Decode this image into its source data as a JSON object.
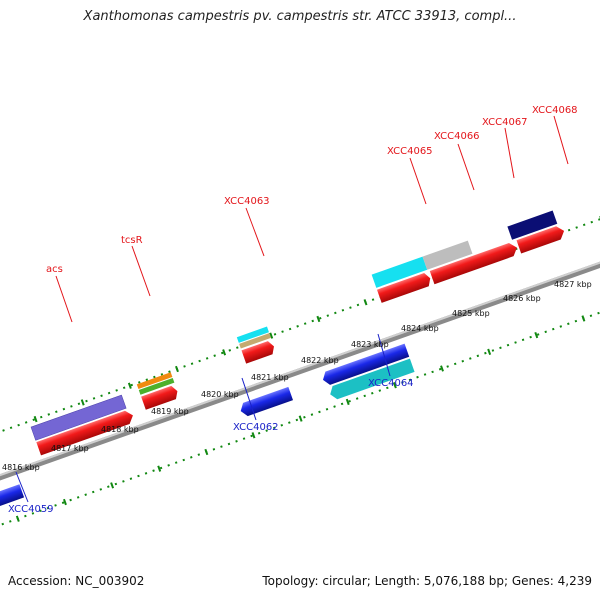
{
  "title": "Xanthomonas campestris pv. campestris str. ATCC 33913, compl...",
  "footer": {
    "accession": "Accession: NC_003902",
    "summary": "Topology: circular; Length: 5,076,188 bp; Genes: 4,239"
  },
  "colors": {
    "red": "#e8141a",
    "blue": "#1222e0",
    "purple": "#7466d4",
    "cyan": "#16e0f0",
    "teal": "#1cc0c4",
    "navy": "#0b0e74",
    "gray": "#bdbdbd",
    "orange": "#f08a10",
    "green": "#4cb02c",
    "tan": "#c4aa70",
    "label_red": "#e3151a",
    "label_blue": "#1a22c8",
    "tick_green": "#118811",
    "backbone": "#888888"
  },
  "scale": {
    "unit": "kbp",
    "ticks": [
      {
        "label": "4816 kbp"
      },
      {
        "label": "4817 kbp"
      },
      {
        "label": "4818 kbp"
      },
      {
        "label": "4819 kbp"
      },
      {
        "label": "4820 kbp"
      },
      {
        "label": "4821 kbp"
      },
      {
        "label": "4822 kbp"
      },
      {
        "label": "4823 kbp"
      },
      {
        "label": "4824 kbp"
      },
      {
        "label": "4825 kbp"
      },
      {
        "label": "4826 kbp"
      },
      {
        "label": "4827 kbp"
      }
    ]
  },
  "gene_labels": {
    "acs": "acs",
    "tcsR": "tcsR",
    "xcc4063": "XCC4063",
    "xcc4065": "XCC4065",
    "xcc4066": "XCC4066",
    "xcc4067": "XCC4067",
    "xcc4068": "XCC4068",
    "xcc4059": "XCC4059",
    "xcc4062": "XCC4062",
    "xcc4064": "XCC4064"
  }
}
